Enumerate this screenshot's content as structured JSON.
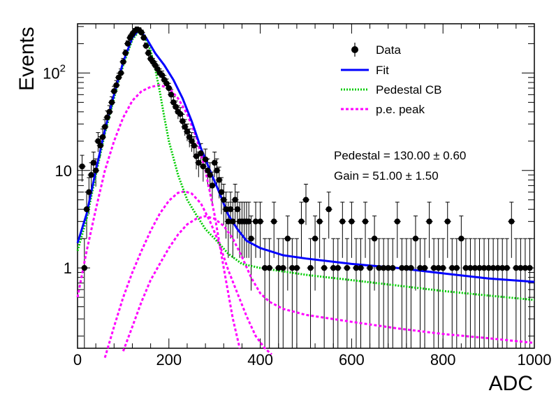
{
  "chart_data": {
    "type": "scatter",
    "xlabel": "ADC",
    "ylabel": "Events",
    "xlim": [
      0,
      1000
    ],
    "ylim": [
      0.15,
      320
    ],
    "yscale": "log",
    "x_ticks": [
      "0",
      "200",
      "400",
      "600",
      "800",
      "1000"
    ],
    "y_ticks": [
      {
        "value": 1,
        "label": "1"
      },
      {
        "value": 10,
        "label": "10"
      },
      {
        "value": 100,
        "label": "10",
        "sup": "2"
      }
    ],
    "legend": {
      "placement": "top-right",
      "entries": [
        {
          "label": "Data",
          "style": "marker"
        },
        {
          "label": "Fit",
          "style": "solid",
          "color": "#0000ff"
        },
        {
          "label": "Pedestal CB",
          "style": "dotted",
          "color": "#00cc00"
        },
        {
          "label": "p.e. peak",
          "style": "dashed",
          "color": "#ff00ff"
        }
      ]
    },
    "annotations": [
      "Pedestal = 130.00 ± 0.60",
      "Gain = 51.00 ± 1.50"
    ],
    "data_series": {
      "name": "Data",
      "x": [
        10,
        15,
        20,
        25,
        30,
        35,
        40,
        45,
        50,
        55,
        60,
        65,
        70,
        75,
        80,
        85,
        90,
        95,
        100,
        105,
        110,
        115,
        120,
        125,
        130,
        135,
        140,
        145,
        150,
        155,
        160,
        165,
        170,
        175,
        180,
        185,
        190,
        195,
        200,
        205,
        210,
        215,
        220,
        225,
        230,
        235,
        240,
        245,
        250,
        255,
        260,
        265,
        270,
        275,
        280,
        285,
        290,
        295,
        300,
        305,
        310,
        315,
        320,
        325,
        330,
        335,
        340,
        345,
        350,
        355,
        360,
        365,
        370,
        375,
        380,
        390,
        400,
        410,
        420,
        430,
        440,
        450,
        460,
        470,
        480,
        490,
        500,
        510,
        520,
        530,
        540,
        550,
        560,
        570,
        580,
        590,
        600,
        610,
        620,
        630,
        640,
        650,
        660,
        670,
        680,
        690,
        700,
        710,
        720,
        730,
        740,
        750,
        760,
        770,
        780,
        790,
        800,
        810,
        820,
        830,
        840,
        850,
        860,
        870,
        880,
        890,
        900,
        910,
        920,
        930,
        940,
        950,
        960,
        970,
        980,
        990
      ],
      "y": [
        11,
        1,
        4,
        6,
        9,
        12,
        10,
        20,
        18,
        22,
        28,
        35,
        40,
        50,
        65,
        75,
        90,
        100,
        130,
        160,
        200,
        230,
        250,
        270,
        280,
        275,
        260,
        230,
        190,
        160,
        140,
        130,
        120,
        110,
        100,
        95,
        85,
        78,
        70,
        60,
        50,
        45,
        40,
        38,
        32,
        28,
        25,
        22,
        20,
        18,
        14,
        12,
        15,
        11,
        13,
        10,
        9,
        7,
        12,
        10,
        8,
        6,
        5,
        4,
        3,
        4,
        3,
        5,
        4,
        3,
        3,
        3,
        3,
        3,
        2,
        3,
        3,
        1,
        1,
        3,
        1,
        1,
        2,
        1,
        1,
        3,
        5,
        1,
        2,
        3,
        1,
        4,
        1,
        1,
        3,
        1,
        3,
        1,
        1,
        3,
        1,
        2,
        1,
        1,
        1,
        1,
        3,
        1,
        1,
        1,
        2,
        1,
        1,
        3,
        1,
        1,
        1,
        3,
        1,
        1,
        2,
        1,
        1,
        1,
        1,
        1,
        1,
        1,
        1,
        1,
        1,
        3,
        1,
        1,
        1,
        1
      ]
    },
    "fit_series": {
      "name": "Fit",
      "x": [
        0,
        20,
        40,
        60,
        80,
        100,
        120,
        135,
        150,
        170,
        190,
        210,
        230,
        250,
        270,
        290,
        310,
        330,
        350,
        370,
        400,
        450,
        500,
        600,
        700,
        800,
        900,
        1000
      ],
      "y": [
        1.8,
        3.6,
        10,
        26,
        60,
        130,
        230,
        280,
        230,
        160,
        120,
        85,
        55,
        32,
        17,
        10,
        6,
        3.5,
        2.5,
        1.9,
        1.6,
        1.35,
        1.25,
        1.1,
        1.0,
        0.88,
        0.78,
        0.72
      ]
    },
    "pedestal_series": {
      "name": "Pedestal CB",
      "x": [
        0,
        20,
        40,
        60,
        80,
        100,
        120,
        135,
        150,
        160,
        170,
        180,
        190,
        200,
        220,
        240,
        260,
        280,
        300,
        330,
        360,
        400,
        500,
        600,
        700,
        800,
        900,
        1000
      ],
      "y": [
        1.5,
        3.2,
        9,
        24,
        55,
        120,
        220,
        270,
        220,
        170,
        110,
        65,
        35,
        20,
        9,
        5,
        3.5,
        2.5,
        2.0,
        1.4,
        1.1,
        1.0,
        0.85,
        0.75,
        0.66,
        0.58,
        0.52,
        0.47
      ]
    },
    "pe_peaks": [
      {
        "name": "p.e. peak",
        "x": [
          0,
          20,
          40,
          60,
          80,
          100,
          120,
          140,
          160,
          180,
          200,
          220,
          240,
          260,
          280,
          300,
          320,
          340,
          355
        ],
        "y": [
          0.5,
          1.5,
          4,
          10,
          20,
          35,
          52,
          65,
          72,
          75,
          70,
          55,
          38,
          22,
          10,
          3.5,
          1.0,
          0.3,
          0.15
        ]
      },
      {
        "x": [
          60,
          80,
          100,
          120,
          140,
          160,
          180,
          200,
          220,
          235,
          250,
          270,
          290,
          310,
          330,
          350,
          370,
          390,
          410,
          425
        ],
        "y": [
          0.12,
          0.25,
          0.5,
          0.9,
          1.5,
          2.4,
          3.6,
          4.9,
          5.9,
          6.1,
          5.8,
          4.6,
          3.0,
          1.8,
          0.95,
          0.55,
          0.32,
          0.2,
          0.15,
          0.13
        ]
      },
      {
        "x": [
          100,
          120,
          140,
          160,
          180,
          200,
          220,
          240,
          260,
          280,
          300,
          320,
          340,
          360,
          380,
          400,
          420,
          450,
          500,
          600,
          700,
          800,
          900,
          1000
        ],
        "y": [
          0.14,
          0.25,
          0.45,
          0.75,
          1.1,
          1.6,
          2.2,
          2.8,
          3.2,
          3.4,
          3.2,
          2.7,
          2.0,
          1.3,
          0.8,
          0.55,
          0.45,
          0.38,
          0.33,
          0.28,
          0.24,
          0.21,
          0.19,
          0.17
        ]
      }
    ]
  }
}
